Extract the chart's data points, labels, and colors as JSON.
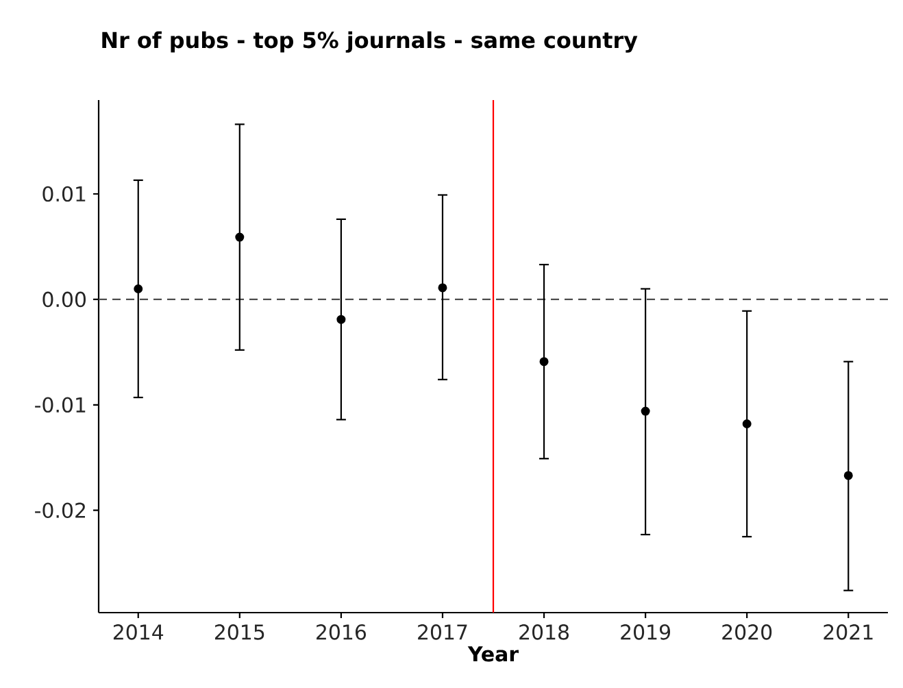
{
  "chart_data": {
    "type": "scatter",
    "title": "Nr of pubs - top 5% journals - same country",
    "xlabel": "Year",
    "x": [
      2014,
      2015,
      2016,
      2017,
      2018,
      2019,
      2020,
      2021
    ],
    "values": [
      0.001,
      0.0059,
      -0.0019,
      0.0011,
      -0.0059,
      -0.0106,
      -0.0118,
      -0.0167
    ],
    "errors": [
      [
        -0.0093,
        0.0113
      ],
      [
        -0.0048,
        0.0166
      ],
      [
        -0.0114,
        0.0076
      ],
      [
        -0.0076,
        0.0099
      ],
      [
        -0.0151,
        0.0033
      ],
      [
        -0.0223,
        0.001
      ],
      [
        -0.0225,
        -0.0011
      ],
      [
        -0.0276,
        -0.0059
      ]
    ],
    "color": "#000000",
    "marker": "circle",
    "xlim": [
      2013.61,
      2021.39
    ],
    "xticks": [
      2014,
      2015,
      2016,
      2017,
      2018,
      2019,
      2020,
      2021
    ],
    "ylim": [
      -0.0297,
      0.0189
    ],
    "yticks": [
      -0.02,
      -0.01,
      {
        "value": 0,
        "label": "0.00"
      },
      0.01
    ],
    "ref_lines": [
      {
        "axis": "y",
        "value": 0,
        "color": "#4d4d4d",
        "line_style": "dashed"
      },
      {
        "axis": "x",
        "value": 2017.5,
        "color": "#ff0000",
        "line_style": "solid"
      }
    ]
  }
}
